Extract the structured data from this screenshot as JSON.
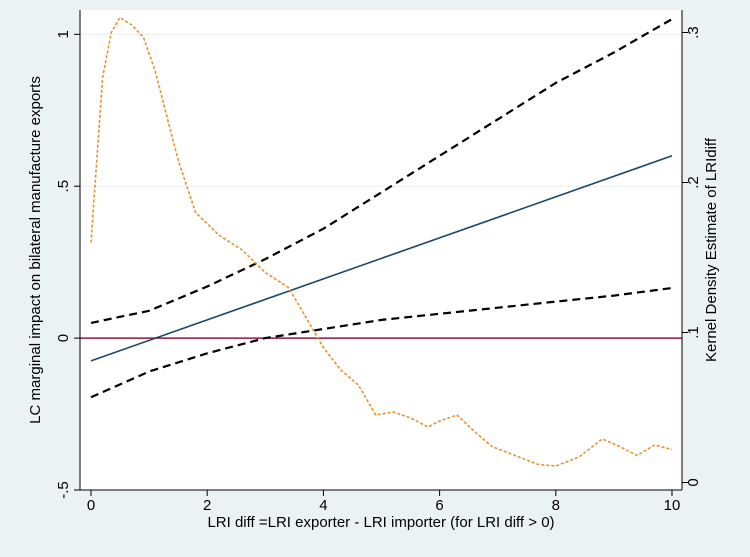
{
  "chart_data": {
    "type": "line",
    "title": "",
    "xlabel": "LRI diff =LRI exporter - LRI importer (for LRI diff > 0)",
    "ylabel": "LC marginal impact on bilateral manufacture exports",
    "y2label": "Kernel Density Estimate of LRIdiff",
    "xlim": [
      0,
      10
    ],
    "ylim": [
      -0.5,
      1.08
    ],
    "y2lim": [
      -0.005,
      0.315
    ],
    "x_ticks": [
      0,
      2,
      4,
      6,
      8,
      10
    ],
    "x_tick_labels": [
      "0",
      "2",
      "4",
      "6",
      "8",
      "10"
    ],
    "y_ticks": [
      -0.5,
      0,
      0.5,
      1
    ],
    "y_tick_labels": [
      "-.5",
      "0",
      ".5",
      "1"
    ],
    "y2_ticks": [
      0,
      0.1,
      0.2,
      0.3
    ],
    "y2_tick_labels": [
      "0",
      ".1",
      ".2",
      ".3"
    ],
    "grid": "horizontal",
    "colors": {
      "background": "#eaf2f3",
      "plot_background": "#ffffff",
      "grid": "#e9eef0",
      "marginal_effect": "#1a476f",
      "confidence_bands": "#000000",
      "zero_line": "#90193d",
      "kernel_density": "#e8922e"
    },
    "series": [
      {
        "role": "marginal-effect",
        "axis": "left",
        "style": "solid",
        "x": [
          0,
          10
        ],
        "y": [
          -0.075,
          0.6
        ]
      },
      {
        "role": "upper-ci",
        "axis": "left",
        "style": "dashed",
        "x": [
          0,
          1,
          2,
          3,
          4,
          5,
          6,
          7,
          8,
          9,
          10
        ],
        "y": [
          0.05,
          0.09,
          0.17,
          0.26,
          0.36,
          0.48,
          0.6,
          0.72,
          0.84,
          0.94,
          1.05
        ]
      },
      {
        "role": "lower-ci",
        "axis": "left",
        "style": "dashed",
        "x": [
          0,
          1,
          2,
          3,
          4,
          5,
          6,
          7,
          8,
          9,
          10
        ],
        "y": [
          -0.195,
          -0.11,
          -0.05,
          0.0,
          0.03,
          0.06,
          0.08,
          0.1,
          0.12,
          0.14,
          0.165
        ]
      },
      {
        "role": "zero-reference",
        "axis": "left",
        "style": "solid",
        "x": [
          0,
          10
        ],
        "y": [
          0,
          0
        ]
      },
      {
        "role": "kernel-density",
        "axis": "right",
        "style": "dotted",
        "x": [
          0,
          0.2,
          0.35,
          0.5,
          0.7,
          0.9,
          1.1,
          1.3,
          1.5,
          1.8,
          2.2,
          2.6,
          3.0,
          3.4,
          3.7,
          4.0,
          4.3,
          4.6,
          4.9,
          5.2,
          5.5,
          5.8,
          6.0,
          6.3,
          6.6,
          6.9,
          7.3,
          7.7,
          8.0,
          8.4,
          8.8,
          9.1,
          9.4,
          9.7,
          10.0
        ],
        "y": [
          0.16,
          0.27,
          0.3,
          0.31,
          0.305,
          0.297,
          0.275,
          0.245,
          0.215,
          0.18,
          0.165,
          0.155,
          0.14,
          0.13,
          0.11,
          0.09,
          0.075,
          0.065,
          0.045,
          0.047,
          0.043,
          0.037,
          0.041,
          0.045,
          0.034,
          0.024,
          0.018,
          0.012,
          0.011,
          0.017,
          0.029,
          0.024,
          0.018,
          0.025,
          0.022
        ]
      }
    ]
  }
}
